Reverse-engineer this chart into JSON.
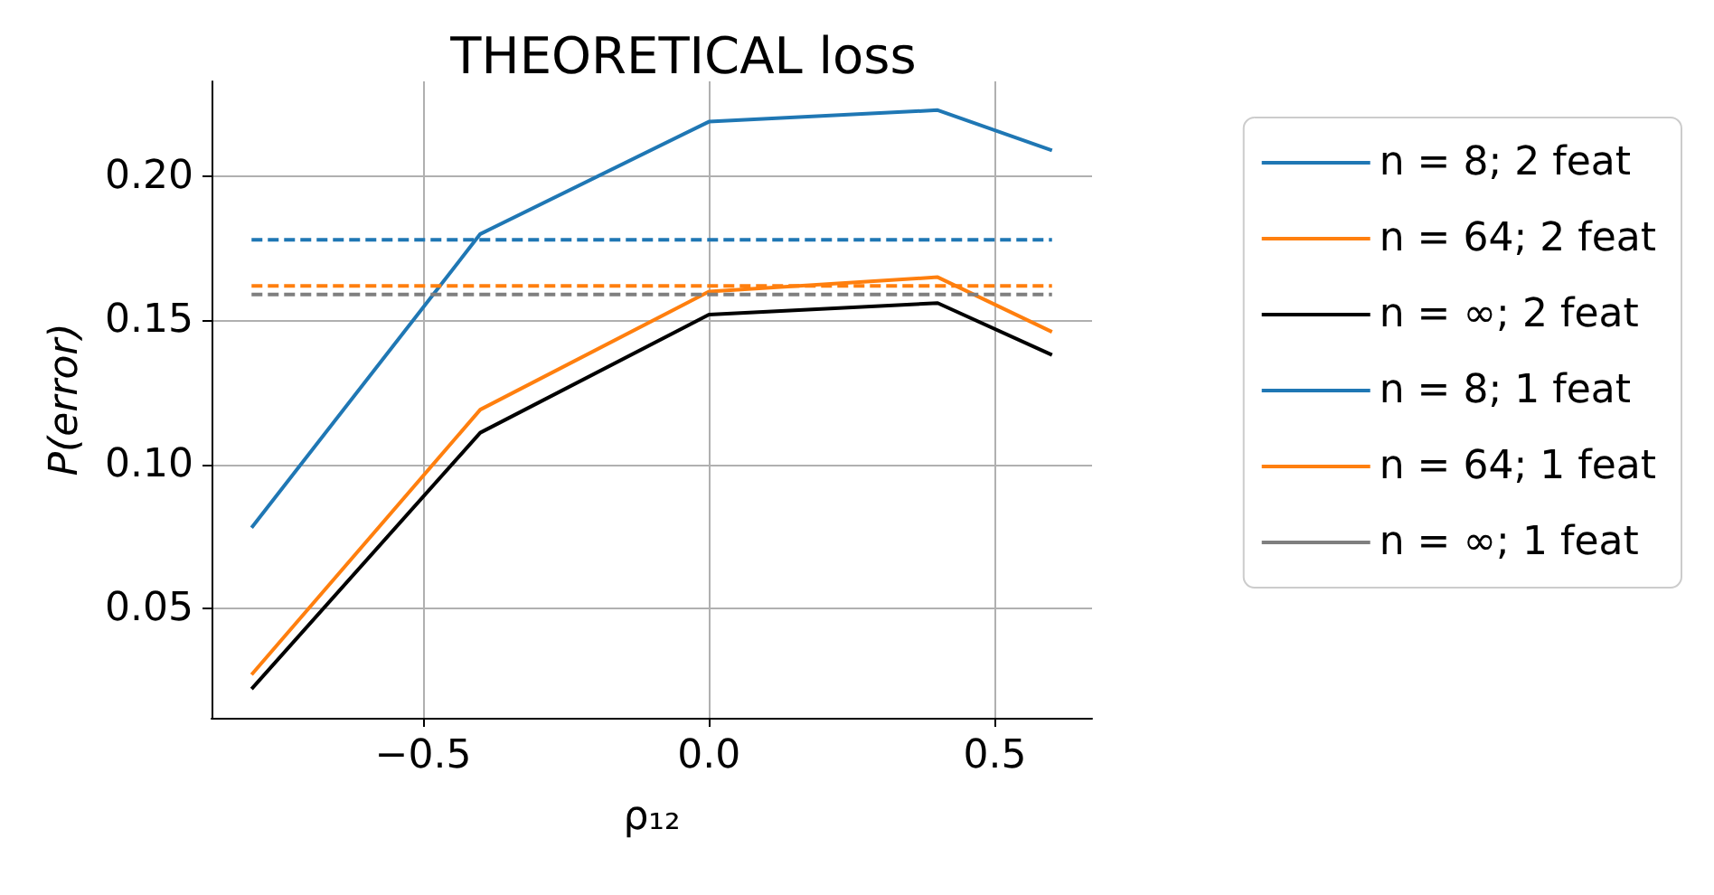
{
  "chart_data": {
    "type": "line",
    "title": "THEORETICAL loss",
    "xlabel": "ρ₁₂",
    "ylabel": "P(error)",
    "x": [
      -0.8,
      -0.4,
      0.0,
      0.4,
      0.6
    ],
    "xlim": [
      -0.87,
      0.67
    ],
    "xticks": [
      {
        "value": -0.5,
        "label": "−0.5"
      },
      {
        "value": 0,
        "label": "0.0"
      },
      {
        "value": 0.5,
        "label": "0.5"
      }
    ],
    "ylim": [
      0.012,
      0.233
    ],
    "yticks": [
      {
        "value": 0.05,
        "label": "0.05"
      },
      {
        "value": 0.1,
        "label": "0.10"
      },
      {
        "value": 0.15,
        "label": "0.15"
      },
      {
        "value": 0.2,
        "label": "0.20"
      }
    ],
    "grid": true,
    "legend": "right",
    "marker": "none",
    "series": [
      {
        "name": "n = 8; 2 feat",
        "color": "#1f77b4",
        "line_style": "solid",
        "values": [
          0.078,
          0.18,
          0.219,
          0.223,
          0.209
        ]
      },
      {
        "name": "n = 64; 2 feat",
        "color": "#ff7f0e",
        "line_style": "solid",
        "values": [
          0.027,
          0.119,
          0.16,
          0.165,
          0.146
        ]
      },
      {
        "name": "n = ∞; 2 feat",
        "color": "#000000",
        "line_style": "solid",
        "values": [
          0.022,
          0.111,
          0.152,
          0.156,
          0.138
        ]
      },
      {
        "name": "n = 8; 1 feat",
        "color": "#1f77b4",
        "line_style": "dashed",
        "values": [
          0.178,
          0.178,
          0.178,
          0.178,
          0.178
        ]
      },
      {
        "name": "n = 64; 1 feat",
        "color": "#ff7f0e",
        "line_style": "dashed",
        "values": [
          0.162,
          0.162,
          0.162,
          0.162,
          0.162
        ]
      },
      {
        "name": "n = ∞; 1 feat",
        "color": "#7f7f7f",
        "line_style": "dashed",
        "values": [
          0.159,
          0.159,
          0.159,
          0.159,
          0.159
        ]
      }
    ]
  }
}
